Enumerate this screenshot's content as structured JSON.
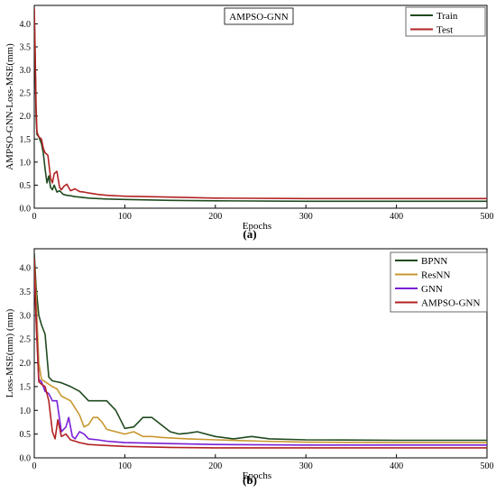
{
  "chart_data": [
    {
      "type": "line",
      "panel_label": "(a)",
      "title": "AMPSO-GNN",
      "xlabel": "Epochs",
      "ylabel": "AMPSO-GNN-Loss-MSE(mm)",
      "xlim": [
        0,
        500
      ],
      "ylim": [
        0,
        4.4
      ],
      "xticks": [
        0,
        100,
        200,
        300,
        400,
        500
      ],
      "yticks": [
        0.0,
        0.5,
        1.0,
        1.5,
        2.0,
        2.5,
        3.0,
        3.5,
        4.0
      ],
      "legend_position": "top-right",
      "series": [
        {
          "name": "Train",
          "color": "#1f4a1f",
          "x": [
            0,
            1,
            2,
            3,
            5,
            8,
            10,
            12,
            14,
            16,
            18,
            20,
            22,
            25,
            28,
            32,
            36,
            40,
            45,
            50,
            60,
            70,
            80,
            100,
            150,
            200,
            300,
            400,
            500
          ],
          "y": [
            4.3,
            3.2,
            2.0,
            1.6,
            1.55,
            1.4,
            1.2,
            0.85,
            0.55,
            0.7,
            0.45,
            0.4,
            0.5,
            0.35,
            0.38,
            0.3,
            0.28,
            0.27,
            0.25,
            0.24,
            0.22,
            0.21,
            0.2,
            0.19,
            0.17,
            0.16,
            0.15,
            0.15,
            0.15
          ]
        },
        {
          "name": "Test",
          "color": "#b22222",
          "x": [
            0,
            1,
            2,
            3,
            5,
            8,
            10,
            12,
            15,
            18,
            20,
            22,
            25,
            28,
            30,
            33,
            36,
            40,
            45,
            50,
            55,
            60,
            70,
            80,
            100,
            150,
            200,
            300,
            400,
            500
          ],
          "y": [
            4.35,
            3.4,
            2.2,
            1.65,
            1.55,
            1.5,
            1.3,
            1.2,
            1.15,
            0.65,
            0.55,
            0.75,
            0.8,
            0.45,
            0.4,
            0.48,
            0.52,
            0.38,
            0.42,
            0.36,
            0.35,
            0.33,
            0.3,
            0.28,
            0.26,
            0.24,
            0.22,
            0.21,
            0.21,
            0.21
          ]
        }
      ]
    },
    {
      "type": "line",
      "panel_label": "(b)",
      "xlabel": "Epochs",
      "ylabel": "Loss-MSE(mm) (mm)",
      "xlim": [
        0,
        500
      ],
      "ylim": [
        0,
        4.4
      ],
      "xticks": [
        0,
        100,
        200,
        300,
        400,
        500
      ],
      "yticks": [
        0.0,
        0.5,
        1.0,
        1.5,
        2.0,
        2.5,
        3.0,
        3.5,
        4.0
      ],
      "legend_position": "top-right",
      "series": [
        {
          "name": "BPNN",
          "color": "#1f4a1f",
          "x": [
            0,
            2,
            5,
            8,
            12,
            16,
            20,
            25,
            30,
            40,
            50,
            60,
            70,
            80,
            90,
            100,
            110,
            120,
            130,
            140,
            150,
            160,
            170,
            180,
            200,
            220,
            240,
            260,
            300,
            400,
            500
          ],
          "y": [
            4.3,
            3.6,
            3.0,
            2.8,
            2.6,
            1.7,
            1.62,
            1.6,
            1.58,
            1.5,
            1.4,
            1.2,
            1.2,
            1.2,
            1.0,
            0.62,
            0.65,
            0.85,
            0.85,
            0.7,
            0.55,
            0.5,
            0.52,
            0.55,
            0.45,
            0.4,
            0.45,
            0.4,
            0.38,
            0.37,
            0.37
          ]
        },
        {
          "name": "ResNN",
          "color": "#c8962e",
          "x": [
            0,
            2,
            5,
            8,
            12,
            16,
            20,
            25,
            30,
            40,
            50,
            55,
            60,
            65,
            70,
            75,
            80,
            90,
            100,
            110,
            120,
            130,
            140,
            150,
            170,
            200,
            250,
            300,
            400,
            500
          ],
          "y": [
            4.1,
            3.4,
            2.0,
            1.65,
            1.6,
            1.55,
            1.5,
            1.45,
            1.3,
            1.2,
            0.9,
            0.65,
            0.7,
            0.85,
            0.85,
            0.75,
            0.6,
            0.55,
            0.5,
            0.55,
            0.45,
            0.45,
            0.43,
            0.42,
            0.4,
            0.38,
            0.35,
            0.33,
            0.32,
            0.32
          ]
        },
        {
          "name": "GNN",
          "color": "#7a1fd6",
          "x": [
            0,
            2,
            5,
            8,
            12,
            16,
            20,
            25,
            30,
            35,
            38,
            42,
            45,
            50,
            55,
            60,
            70,
            80,
            100,
            150,
            200,
            300,
            400,
            500
          ],
          "y": [
            4.0,
            3.0,
            1.65,
            1.6,
            1.4,
            1.35,
            1.2,
            1.2,
            0.55,
            0.65,
            0.85,
            0.45,
            0.4,
            0.55,
            0.5,
            0.4,
            0.38,
            0.35,
            0.32,
            0.3,
            0.28,
            0.27,
            0.27,
            0.27
          ]
        },
        {
          "name": "AMPSO-GNN",
          "color": "#b22222",
          "x": [
            0,
            2,
            5,
            8,
            12,
            16,
            20,
            23,
            26,
            30,
            35,
            40,
            45,
            50,
            60,
            80,
            100,
            150,
            200,
            300,
            400,
            500
          ],
          "y": [
            4.2,
            2.9,
            1.6,
            1.55,
            1.5,
            1.2,
            0.55,
            0.4,
            0.8,
            0.45,
            0.5,
            0.38,
            0.35,
            0.32,
            0.28,
            0.26,
            0.24,
            0.22,
            0.21,
            0.21,
            0.21,
            0.21
          ]
        }
      ]
    }
  ]
}
